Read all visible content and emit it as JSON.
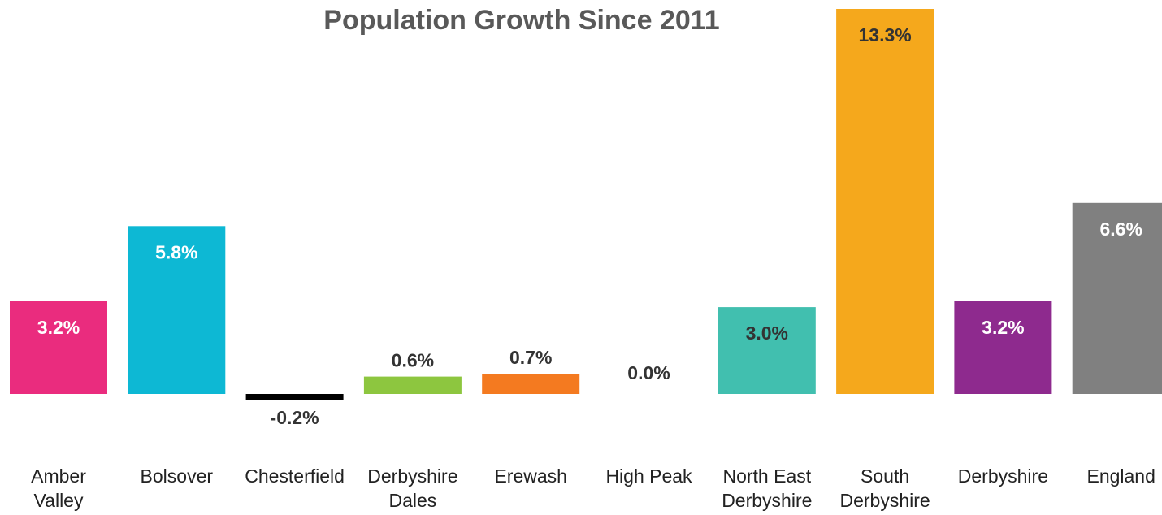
{
  "chart_data": {
    "type": "bar",
    "title": "Population Growth Since 2011",
    "xlabel": "",
    "ylabel": "",
    "ylim": [
      -0.8,
      13.3
    ],
    "grid": false,
    "legend": "none",
    "categories": [
      [
        "Amber",
        "Valley"
      ],
      [
        "Bolsover"
      ],
      [
        "Chesterfield"
      ],
      [
        "Derbyshire",
        "Dales"
      ],
      [
        "Erewash"
      ],
      [
        "High Peak"
      ],
      [
        "North East",
        "Derbyshire"
      ],
      [
        "South",
        "Derbyshire"
      ],
      [
        "Derbyshire"
      ],
      [
        "England"
      ]
    ],
    "values": [
      3.2,
      5.8,
      -0.2,
      0.6,
      0.7,
      0.0,
      3.0,
      13.3,
      3.2,
      6.6
    ],
    "value_labels": [
      "3.2%",
      "5.8%",
      "-0.2%",
      "0.6%",
      "0.7%",
      "0.0%",
      "3.0%",
      "13.3%",
      "3.2%",
      "6.6%"
    ],
    "colors": [
      "#EA2C7E",
      "#0DB8D4",
      "#000000",
      "#8DC63F",
      "#F47A20",
      "#8C8C8C",
      "#41BFAF",
      "#F5A81C",
      "#8E2A8E",
      "#808080"
    ],
    "label_colors": [
      "#ffffff",
      "#ffffff",
      "#333333",
      "#333333",
      "#333333",
      "#333333",
      "#333333",
      "#333333",
      "#ffffff",
      "#ffffff"
    ]
  }
}
